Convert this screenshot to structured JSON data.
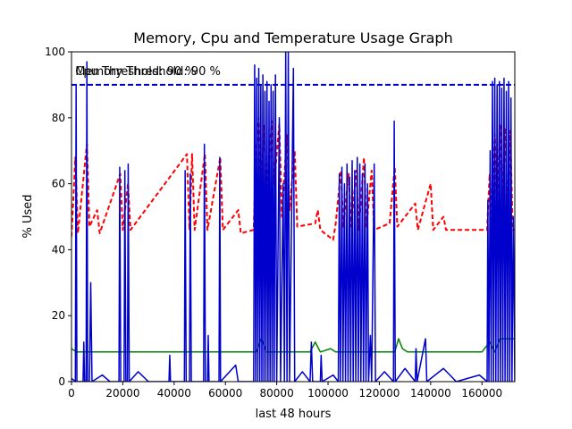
{
  "chart_data": {
    "type": "line",
    "title": "Memory, Cpu and Temperature Usage Graph",
    "xlabel": "last 48 hours",
    "ylabel": "% Used",
    "xlim": [
      0,
      172800
    ],
    "ylim": [
      0,
      100
    ],
    "xticks": [
      0,
      20000,
      40000,
      60000,
      80000,
      100000,
      120000,
      140000,
      160000
    ],
    "yticks": [
      0,
      20,
      40,
      60,
      80,
      100
    ],
    "annotations": [
      {
        "text": "Memory Threshold: 90 %",
        "x": 1500,
        "y": 93
      },
      {
        "text": "Cpu Threshold: 90 %",
        "x": 1500,
        "y": 93
      }
    ],
    "threshold": {
      "value": 90,
      "color": "#0000cc"
    },
    "series": [
      {
        "color": "#008000",
        "style": "solid",
        "points": [
          [
            0,
            10
          ],
          [
            2000,
            9
          ],
          [
            30000,
            9
          ],
          [
            72000,
            9
          ],
          [
            74000,
            13
          ],
          [
            76000,
            9
          ],
          [
            93000,
            9
          ],
          [
            95000,
            12
          ],
          [
            97000,
            9
          ],
          [
            101000,
            10
          ],
          [
            103000,
            9
          ],
          [
            126000,
            9
          ],
          [
            127500,
            13
          ],
          [
            129000,
            10
          ],
          [
            131000,
            9
          ],
          [
            160000,
            9
          ],
          [
            163000,
            12
          ],
          [
            165000,
            9
          ],
          [
            167000,
            13
          ],
          [
            172800,
            13
          ]
        ]
      },
      {
        "color": "#ff0000",
        "style": "dashed",
        "points": [
          [
            0,
            44
          ],
          [
            1500,
            68
          ],
          [
            2500,
            45
          ],
          [
            6000,
            72
          ],
          [
            7000,
            47
          ],
          [
            10000,
            52
          ],
          [
            11000,
            45
          ],
          [
            19000,
            63
          ],
          [
            20000,
            46
          ],
          [
            22000,
            60
          ],
          [
            23000,
            46
          ],
          [
            45000,
            69
          ],
          [
            46000,
            46
          ],
          [
            47000,
            69
          ],
          [
            48000,
            46
          ],
          [
            52000,
            69
          ],
          [
            53000,
            46
          ],
          [
            58000,
            68
          ],
          [
            59000,
            46
          ],
          [
            65000,
            52
          ],
          [
            66000,
            45
          ],
          [
            71000,
            46
          ],
          [
            72000,
            70
          ],
          [
            73000,
            80
          ],
          [
            74000,
            58
          ],
          [
            75000,
            78
          ],
          [
            76000,
            55
          ],
          [
            78000,
            79
          ],
          [
            79000,
            60
          ],
          [
            81000,
            78
          ],
          [
            82000,
            50
          ],
          [
            84000,
            75
          ],
          [
            85000,
            52
          ],
          [
            87000,
            70
          ],
          [
            88000,
            47
          ],
          [
            95000,
            48
          ],
          [
            96000,
            52
          ],
          [
            97000,
            46
          ],
          [
            102000,
            43
          ],
          [
            103000,
            48
          ],
          [
            105000,
            64
          ],
          [
            106000,
            47
          ],
          [
            108000,
            63
          ],
          [
            109000,
            47
          ],
          [
            111000,
            64
          ],
          [
            112000,
            46
          ],
          [
            114000,
            68
          ],
          [
            115000,
            47
          ],
          [
            117000,
            64
          ],
          [
            118000,
            46
          ],
          [
            124000,
            48
          ],
          [
            126000,
            65
          ],
          [
            127000,
            47
          ],
          [
            134000,
            54
          ],
          [
            135000,
            46
          ],
          [
            140000,
            60
          ],
          [
            141000,
            46
          ],
          [
            145000,
            50
          ],
          [
            146000,
            46
          ],
          [
            162000,
            46
          ],
          [
            163000,
            63
          ],
          [
            164000,
            48
          ],
          [
            165000,
            75
          ],
          [
            166000,
            52
          ],
          [
            167000,
            78
          ],
          [
            168000,
            55
          ],
          [
            169000,
            77
          ],
          [
            170000,
            50
          ],
          [
            171000,
            76
          ],
          [
            172000,
            46
          ],
          [
            172800,
            46
          ]
        ]
      },
      {
        "color": "#0000cc",
        "style": "solid",
        "points": [
          [
            0,
            1
          ],
          [
            1500,
            0
          ],
          [
            1800,
            90
          ],
          [
            2100,
            0
          ],
          [
            4500,
            0
          ],
          [
            4800,
            12
          ],
          [
            5100,
            0
          ],
          [
            5700,
            0
          ],
          [
            6000,
            97
          ],
          [
            6300,
            0
          ],
          [
            7000,
            0
          ],
          [
            7500,
            30
          ],
          [
            8000,
            0
          ],
          [
            12000,
            2
          ],
          [
            15000,
            0
          ],
          [
            18500,
            0
          ],
          [
            18800,
            65
          ],
          [
            19200,
            0
          ],
          [
            20500,
            0
          ],
          [
            20800,
            64
          ],
          [
            21200,
            0
          ],
          [
            21800,
            0
          ],
          [
            22100,
            66
          ],
          [
            22500,
            0
          ],
          [
            26000,
            3
          ],
          [
            30000,
            0
          ],
          [
            38000,
            0
          ],
          [
            38300,
            8
          ],
          [
            38600,
            0
          ],
          [
            44000,
            0
          ],
          [
            44300,
            64
          ],
          [
            44700,
            0
          ],
          [
            46000,
            0
          ],
          [
            46300,
            63
          ],
          [
            46700,
            0
          ],
          [
            51500,
            0
          ],
          [
            51800,
            72
          ],
          [
            52200,
            0
          ],
          [
            53000,
            0
          ],
          [
            53300,
            14
          ],
          [
            53600,
            0
          ],
          [
            57500,
            0
          ],
          [
            57800,
            68
          ],
          [
            58100,
            0
          ],
          [
            64000,
            5
          ],
          [
            65000,
            0
          ],
          [
            71000,
            0
          ],
          [
            71400,
            96
          ],
          [
            71800,
            0
          ],
          [
            72200,
            92
          ],
          [
            72600,
            0
          ],
          [
            73000,
            95
          ],
          [
            73400,
            0
          ],
          [
            73800,
            90
          ],
          [
            74200,
            0
          ],
          [
            74600,
            93
          ],
          [
            75000,
            0
          ],
          [
            75400,
            88
          ],
          [
            75800,
            0
          ],
          [
            76200,
            91
          ],
          [
            76600,
            0
          ],
          [
            77000,
            85
          ],
          [
            77400,
            0
          ],
          [
            77800,
            90
          ],
          [
            78200,
            0
          ],
          [
            78600,
            88
          ],
          [
            79000,
            0
          ],
          [
            79500,
            93
          ],
          [
            80000,
            0
          ],
          [
            81000,
            80
          ],
          [
            81500,
            0
          ],
          [
            82500,
            60
          ],
          [
            83000,
            0
          ],
          [
            83500,
            100
          ],
          [
            84000,
            0
          ],
          [
            84500,
            100
          ],
          [
            85000,
            0
          ],
          [
            86500,
            95
          ],
          [
            87000,
            0
          ],
          [
            90000,
            3
          ],
          [
            93000,
            0
          ],
          [
            93500,
            12
          ],
          [
            94000,
            0
          ],
          [
            97000,
            0
          ],
          [
            97300,
            8
          ],
          [
            97700,
            0
          ],
          [
            102000,
            2
          ],
          [
            104000,
            0
          ],
          [
            104400,
            63
          ],
          [
            104800,
            0
          ],
          [
            105400,
            65
          ],
          [
            105800,
            0
          ],
          [
            106400,
            60
          ],
          [
            106800,
            0
          ],
          [
            107400,
            66
          ],
          [
            107800,
            0
          ],
          [
            108400,
            62
          ],
          [
            108800,
            0
          ],
          [
            109400,
            67
          ],
          [
            109800,
            0
          ],
          [
            110400,
            64
          ],
          [
            110800,
            0
          ],
          [
            111400,
            68
          ],
          [
            111800,
            0
          ],
          [
            112400,
            66
          ],
          [
            112800,
            0
          ],
          [
            113400,
            63
          ],
          [
            113800,
            0
          ],
          [
            114400,
            66
          ],
          [
            114800,
            0
          ],
          [
            115400,
            60
          ],
          [
            115800,
            0
          ],
          [
            116500,
            14
          ],
          [
            117000,
            0
          ],
          [
            118000,
            66
          ],
          [
            118500,
            0
          ],
          [
            122000,
            3
          ],
          [
            125500,
            0
          ],
          [
            125800,
            79
          ],
          [
            126200,
            0
          ],
          [
            130000,
            4
          ],
          [
            134000,
            0
          ],
          [
            134300,
            10
          ],
          [
            134700,
            0
          ],
          [
            138000,
            13
          ],
          [
            138500,
            0
          ],
          [
            145000,
            4
          ],
          [
            150000,
            0
          ],
          [
            159000,
            2
          ],
          [
            162000,
            0
          ],
          [
            162300,
            55
          ],
          [
            162700,
            0
          ],
          [
            163200,
            70
          ],
          [
            163600,
            0
          ],
          [
            164100,
            91
          ],
          [
            164500,
            0
          ],
          [
            165000,
            92
          ],
          [
            165400,
            0
          ],
          [
            165900,
            90
          ],
          [
            166300,
            0
          ],
          [
            166800,
            91
          ],
          [
            167200,
            0
          ],
          [
            167700,
            89
          ],
          [
            168100,
            0
          ],
          [
            168600,
            92
          ],
          [
            169000,
            0
          ],
          [
            169500,
            88
          ],
          [
            169900,
            0
          ],
          [
            170400,
            91
          ],
          [
            170800,
            0
          ],
          [
            171300,
            86
          ],
          [
            171700,
            0
          ],
          [
            172200,
            50
          ],
          [
            172800,
            0
          ]
        ]
      }
    ]
  }
}
